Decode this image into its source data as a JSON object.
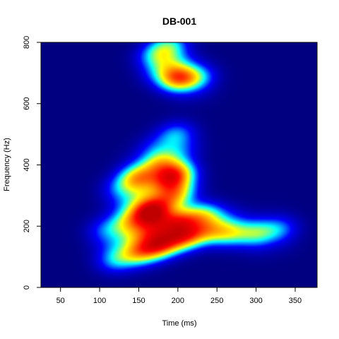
{
  "chart_data": {
    "type": "heatmap",
    "title": "DB-001",
    "xlabel": "Time (ms)",
    "ylabel": "Frequency (Hz)",
    "xlim": [
      25,
      378
    ],
    "ylim": [
      0,
      800
    ],
    "x_ticks": [
      "50",
      "100",
      "150",
      "200",
      "250",
      "300",
      "350"
    ],
    "y_ticks": [
      "0",
      "200",
      "400",
      "600",
      "800"
    ],
    "colormap": [
      "#000080",
      "#0000ff",
      "#00ffff",
      "#ffff00",
      "#ff8000",
      "#ff0000",
      "#c00000"
    ],
    "background_color": "#000080",
    "blobs": [
      {
        "t": 205,
        "f": 190,
        "a": 1.0
      },
      {
        "t": 175,
        "f": 160,
        "a": 0.9
      },
      {
        "t": 150,
        "f": 130,
        "a": 0.55
      },
      {
        "t": 120,
        "f": 100,
        "a": 0.28
      },
      {
        "t": 235,
        "f": 210,
        "a": 0.65
      },
      {
        "t": 265,
        "f": 190,
        "a": 0.4
      },
      {
        "t": 300,
        "f": 175,
        "a": 0.32
      },
      {
        "t": 330,
        "f": 185,
        "a": 0.22
      },
      {
        "t": 165,
        "f": 255,
        "a": 0.85
      },
      {
        "t": 190,
        "f": 320,
        "a": 0.7
      },
      {
        "t": 200,
        "f": 360,
        "a": 0.55
      },
      {
        "t": 140,
        "f": 210,
        "a": 0.35
      },
      {
        "t": 110,
        "f": 180,
        "a": 0.2
      },
      {
        "t": 150,
        "f": 355,
        "a": 0.5
      },
      {
        "t": 175,
        "f": 420,
        "a": 0.45
      },
      {
        "t": 200,
        "f": 480,
        "a": 0.35
      },
      {
        "t": 130,
        "f": 305,
        "a": 0.25
      },
      {
        "t": 200,
        "f": 690,
        "a": 0.6
      },
      {
        "t": 175,
        "f": 735,
        "a": 0.4
      },
      {
        "t": 190,
        "f": 780,
        "a": 0.3
      },
      {
        "t": 225,
        "f": 680,
        "a": 0.25
      }
    ]
  }
}
